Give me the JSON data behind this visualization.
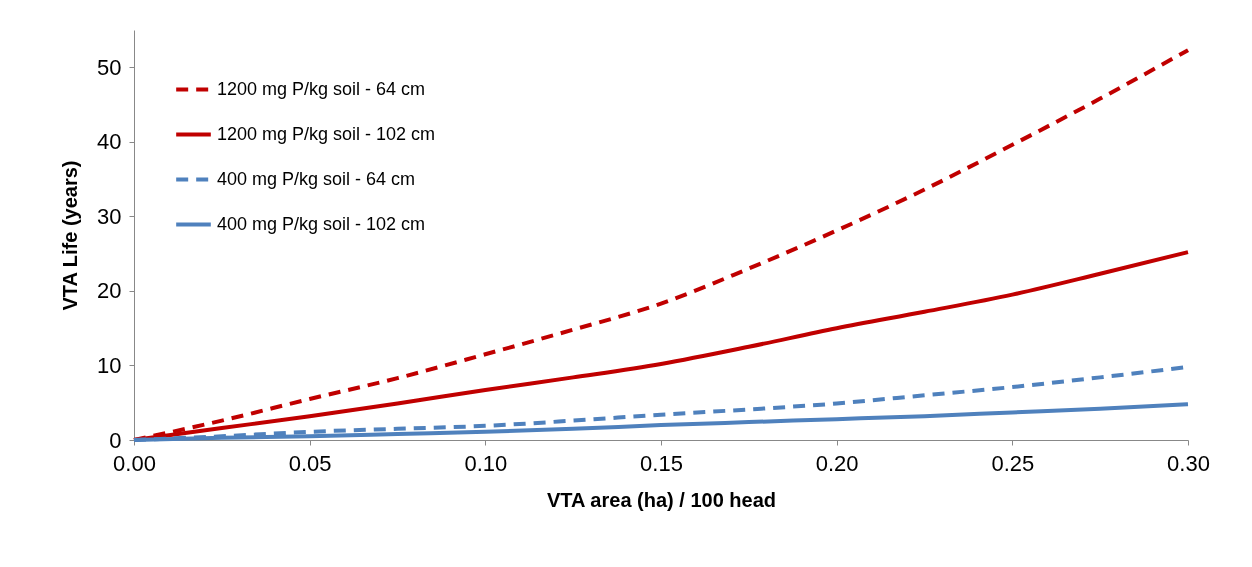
{
  "chart_data": {
    "type": "line",
    "xlabel": "VTA area (ha) / 100 head",
    "ylabel": "VTA Life (years)",
    "x": [
      0,
      0.025,
      0.05,
      0.075,
      0.1,
      0.125,
      0.15,
      0.175,
      0.2,
      0.225,
      0.25,
      0.275,
      0.3
    ],
    "series": [
      {
        "name": "1200 mg P/kg soil - 64 cm",
        "color": "#c00000",
        "line_style": "dashed",
        "values": [
          0,
          2.6,
          5.5,
          8.3,
          11.5,
          14.8,
          18.3,
          23.0,
          28.1,
          33.6,
          39.6,
          45.8,
          52.3
        ]
      },
      {
        "name": "1200 mg P/kg soil - 102 cm",
        "color": "#c00000",
        "line_style": "solid",
        "values": [
          0,
          1.6,
          3.2,
          4.9,
          6.7,
          8.4,
          10.2,
          12.5,
          15.0,
          17.2,
          19.5,
          22.3,
          25.2
        ]
      },
      {
        "name": "400 mg P/kg soil - 64 cm",
        "color": "#4f81bd",
        "line_style": "dashed",
        "values": [
          0,
          0.5,
          1.1,
          1.5,
          1.9,
          2.6,
          3.4,
          4.1,
          4.9,
          6.0,
          7.1,
          8.4,
          9.8
        ]
      },
      {
        "name": "400 mg P/kg soil - 102 cm",
        "color": "#4f81bd",
        "line_style": "solid",
        "values": [
          0,
          0.3,
          0.5,
          0.8,
          1.1,
          1.5,
          2.0,
          2.4,
          2.8,
          3.2,
          3.7,
          4.2,
          4.8
        ]
      }
    ],
    "xlim": [
      0,
      0.3
    ],
    "xticks": [
      {
        "value": 0,
        "label": "0.00"
      },
      {
        "value": 0.05,
        "label": "0.05"
      },
      {
        "value": 0.1,
        "label": "0.10"
      },
      {
        "value": 0.15,
        "label": "0.15"
      },
      {
        "value": 0.2,
        "label": "0.20"
      },
      {
        "value": 0.25,
        "label": "0.25"
      },
      {
        "value": 0.3,
        "label": "0.30"
      }
    ],
    "ylim": [
      0,
      55
    ],
    "yticks": [
      0,
      10,
      20,
      30,
      40,
      50
    ],
    "grid": false,
    "legend": "top left",
    "marker": "none"
  }
}
